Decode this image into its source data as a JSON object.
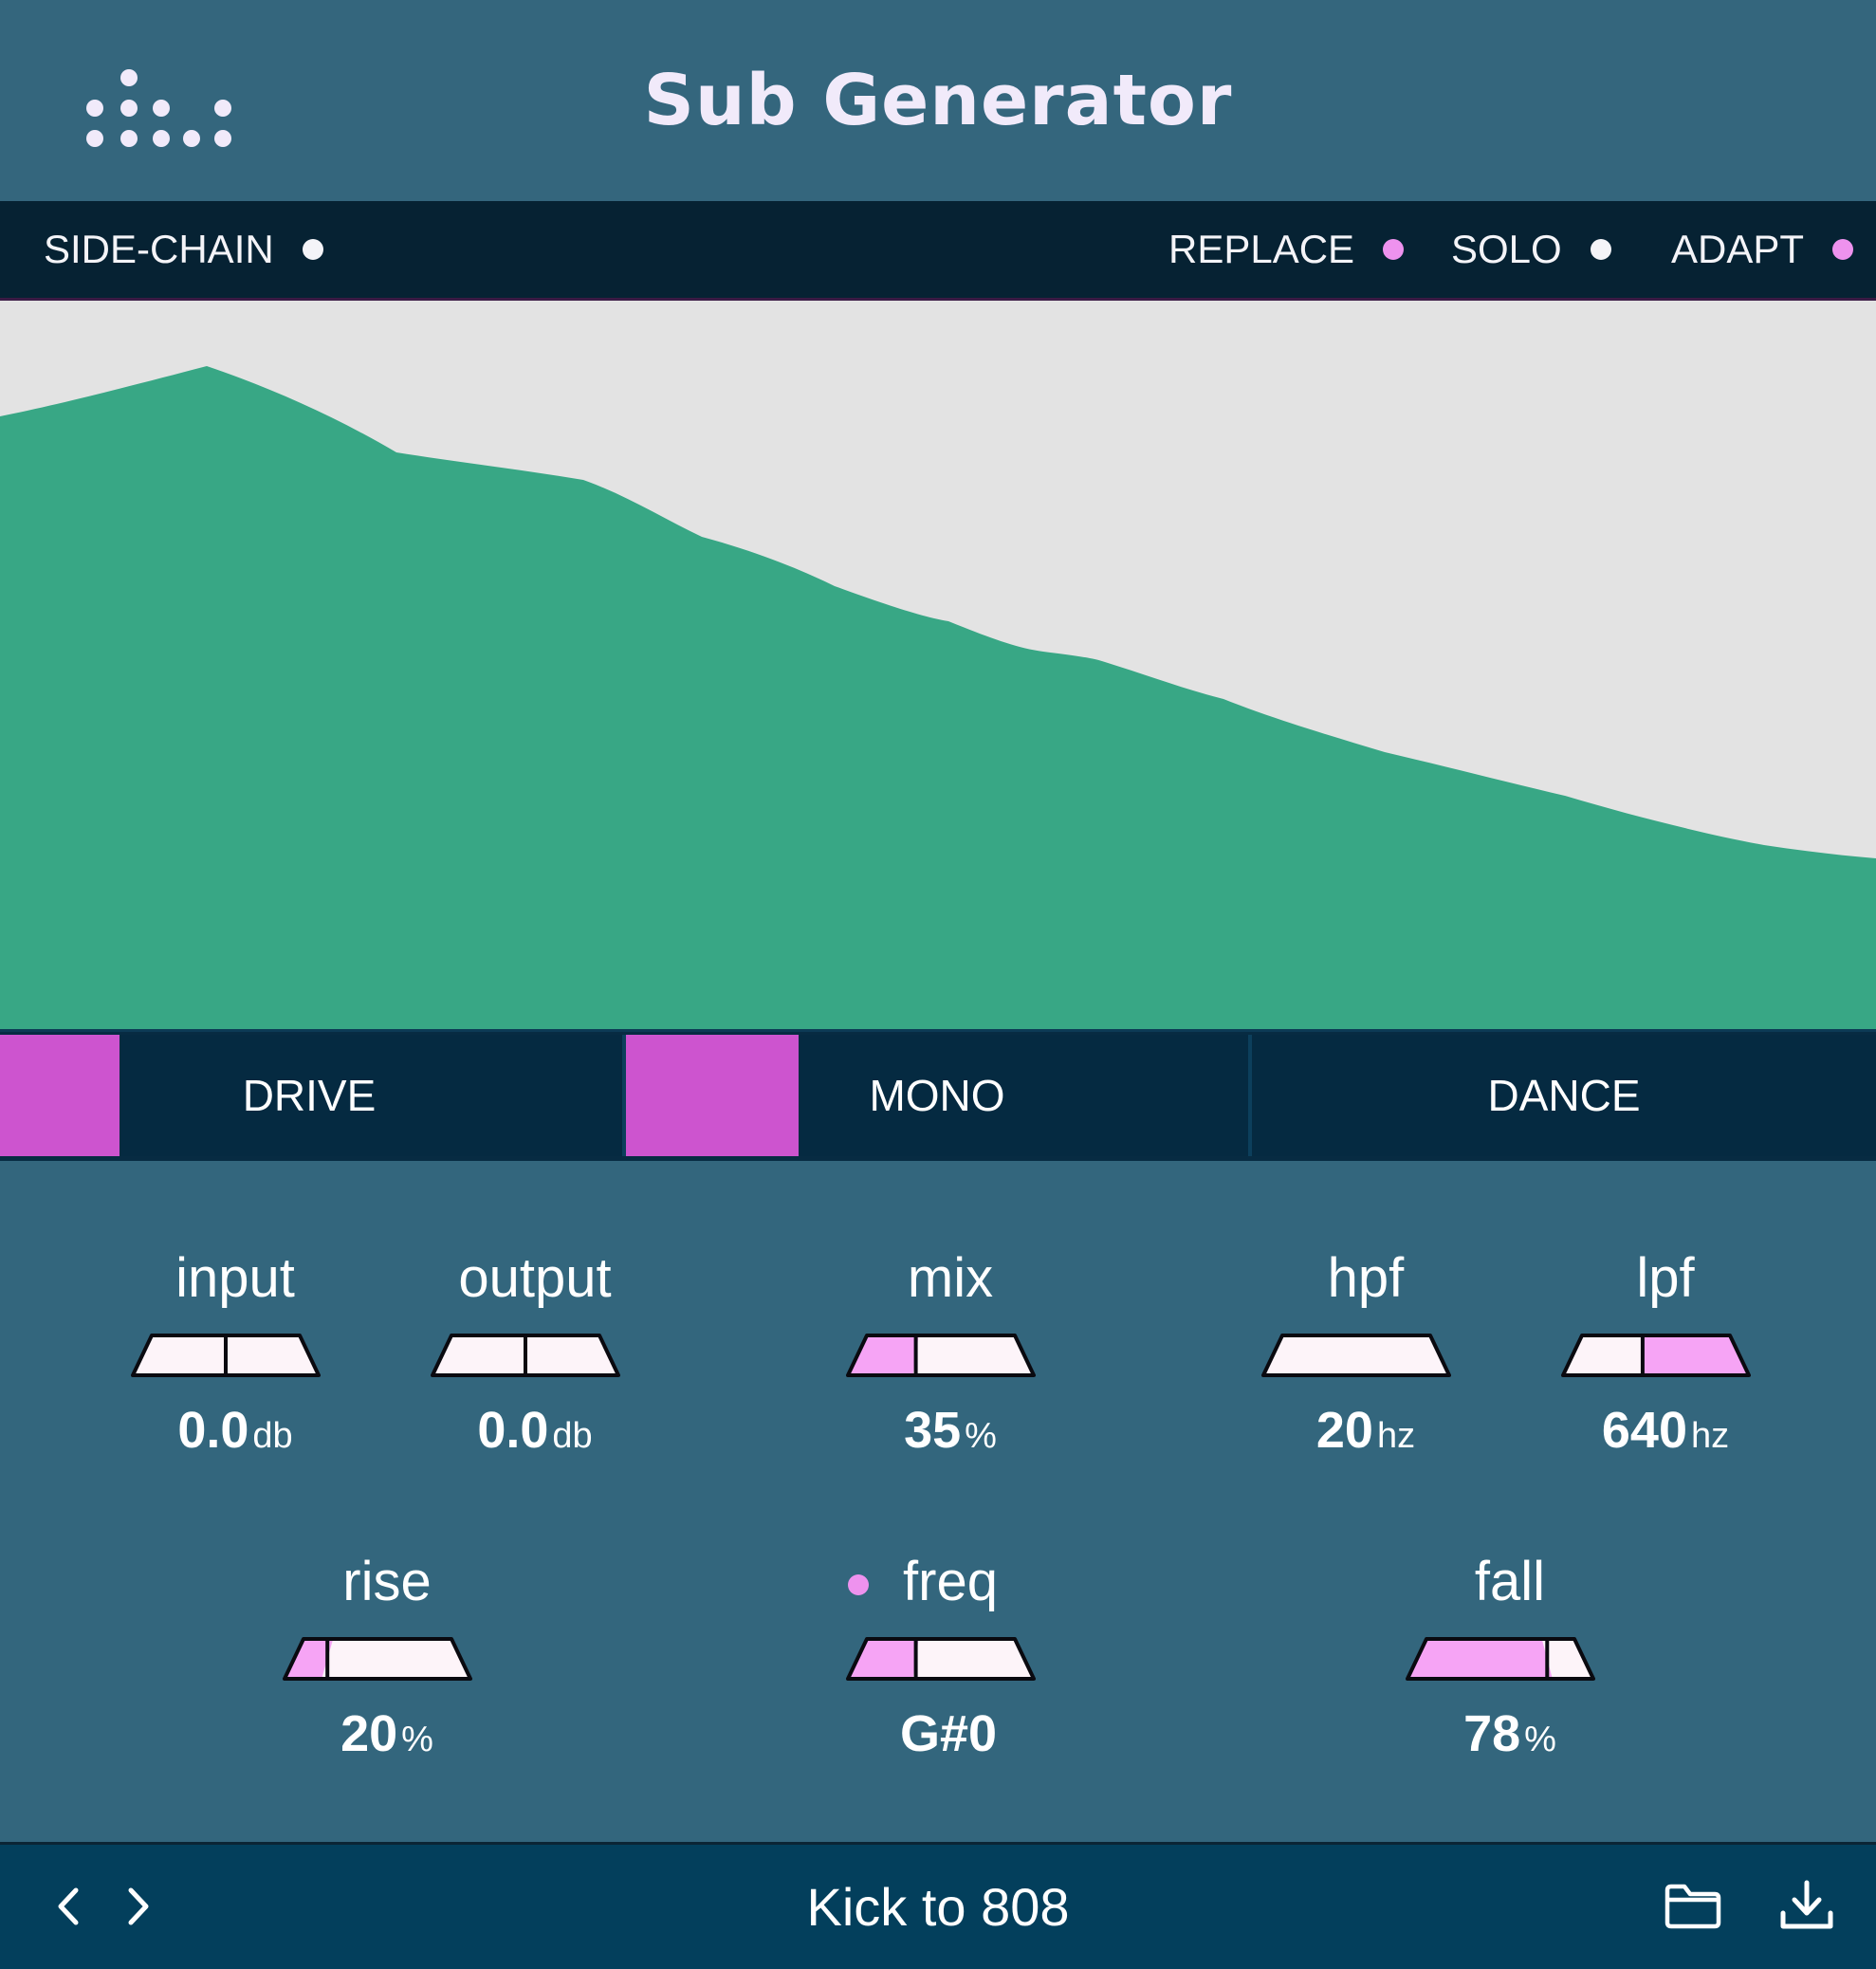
{
  "app": {
    "title": "Sub Generator"
  },
  "toolbar": {
    "sidechain": {
      "label": "SIDE-CHAIN",
      "indicator_color": "#f4f4f8"
    },
    "replace": {
      "label": "REPLACE",
      "indicator_color": "#ee92ee"
    },
    "solo": {
      "label": "SOLO",
      "indicator_color": "#f4f4f8"
    },
    "adapt": {
      "label": "ADAPT",
      "indicator_color": "#ee92ee"
    }
  },
  "spectrum": {
    "fill_color": "#38a785",
    "background_color": "#e3e3e3"
  },
  "modes": {
    "drive": {
      "label": "DRIVE",
      "level": 0.19
    },
    "mono": {
      "label": "MONO",
      "level": 0.28
    },
    "dance": {
      "label": "DANCE",
      "level": 0.0
    }
  },
  "controls": {
    "input": {
      "label": "input",
      "value": "0.0",
      "unit": "db",
      "position": 0.5,
      "fill": "none"
    },
    "output": {
      "label": "output",
      "value": "0.0",
      "unit": "db",
      "position": 0.5,
      "fill": "none"
    },
    "mix": {
      "label": "mix",
      "value": "35",
      "unit": "%",
      "position": 0.35,
      "fill": "left"
    },
    "hpf": {
      "label": "hpf",
      "value": "20",
      "unit": "hz",
      "position": 0.0,
      "fill": "none"
    },
    "lpf": {
      "label": "lpf",
      "value": "640",
      "unit": "hz",
      "position": 0.42,
      "fill": "right"
    },
    "rise": {
      "label": "rise",
      "value": "20",
      "unit": "%",
      "position": 0.2,
      "fill": "left"
    },
    "freq": {
      "label": "freq",
      "value": "G#0",
      "unit": "",
      "position": 0.35,
      "fill": "left"
    },
    "fall": {
      "label": "fall",
      "value": "78",
      "unit": "%",
      "position": 0.78,
      "fill": "left"
    }
  },
  "footer": {
    "preset_name": "Kick to 808",
    "prev_icon": "chevron-left-icon",
    "next_icon": "chevron-right-icon",
    "open_icon": "folder-icon",
    "save_icon": "download-icon"
  },
  "colors": {
    "accent_pink": "#ee92ee",
    "slider_fill": "#f6a4f5",
    "slider_track": "#fdf4f9",
    "mode_fill": "#cd54cf"
  }
}
